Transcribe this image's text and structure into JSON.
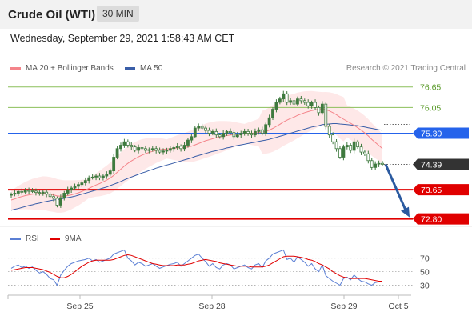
{
  "header": {
    "title": "Crude Oil (WTI)",
    "timeframe": "30 MIN"
  },
  "datetime": "Wednesday, September 29, 2021 1:58:43 AM CET",
  "credit": "Research © 2021 Trading Central",
  "legend": {
    "ma20_label": "MA 20 + Bollinger Bands",
    "ma50_label": "MA 50",
    "rsi_label": "RSI",
    "rsi_ma_label": "9MA"
  },
  "colors": {
    "ma20": "#f4848a",
    "ma50": "#3a5ea8",
    "bollinger": "#fde0e0",
    "candle": "#3f7a3f",
    "level_green": "#8cbf5a",
    "level_blue": "#2563eb",
    "level_red": "#e00000",
    "last_price": "#333333",
    "rsi": "#5b7fd4",
    "rsi_ma": "#e00000",
    "arrow": "#2b5aa0"
  },
  "chart_data": [
    {
      "type": "candlestick",
      "x_tick_labels": [
        "Sep 25",
        "Sep 28",
        "Sep 29",
        "Oct 5"
      ],
      "y_range": [
        72.65,
        76.9
      ],
      "last_price": 74.39,
      "levels": [
        {
          "value": 76.65,
          "label": "76.65",
          "style": "resistance"
        },
        {
          "value": 76.05,
          "label": "76.05",
          "style": "resistance"
        },
        {
          "value": 75.3,
          "label": "75.30",
          "style": "pivot"
        },
        {
          "value": 73.65,
          "label": "73.65",
          "style": "support"
        },
        {
          "value": 72.8,
          "label": "72.80",
          "style": "support"
        }
      ],
      "close": [
        73.52,
        73.55,
        73.6,
        73.58,
        73.63,
        73.62,
        73.61,
        73.57,
        73.55,
        73.58,
        73.52,
        73.45,
        73.4,
        73.2,
        73.42,
        73.55,
        73.65,
        73.7,
        73.75,
        73.8,
        73.85,
        73.92,
        74.0,
        74.02,
        74.05,
        74.0,
        74.05,
        74.1,
        74.2,
        74.6,
        74.85,
        74.95,
        75.05,
        74.95,
        74.9,
        74.8,
        74.88,
        74.85,
        74.8,
        74.82,
        74.85,
        74.8,
        74.75,
        74.78,
        74.8,
        74.85,
        74.88,
        74.92,
        74.85,
        74.95,
        75.1,
        75.2,
        75.45,
        75.5,
        75.45,
        75.38,
        75.3,
        75.35,
        75.25,
        75.2,
        75.3,
        75.35,
        75.32,
        75.2,
        75.25,
        75.3,
        75.35,
        75.3,
        75.25,
        75.35,
        75.4,
        75.3,
        75.55,
        75.75,
        76.0,
        76.2,
        76.3,
        76.45,
        76.2,
        76.25,
        76.15,
        76.3,
        76.25,
        76.2,
        76.1,
        76.2,
        76.05,
        75.9,
        76.15,
        75.5,
        75.25,
        75.05,
        74.85,
        74.6,
        74.9,
        74.95,
        74.8,
        75.05,
        74.9,
        74.75,
        74.7,
        74.5,
        74.3,
        74.4,
        74.42,
        74.39
      ],
      "ma20": [
        73.35,
        73.38,
        73.42,
        73.45,
        73.48,
        73.5,
        73.52,
        73.53,
        73.54,
        73.55,
        73.54,
        73.52,
        73.5,
        73.47,
        73.46,
        73.46,
        73.48,
        73.5,
        73.53,
        73.56,
        73.6,
        73.64,
        73.69,
        73.74,
        73.79,
        73.83,
        73.88,
        73.93,
        73.99,
        74.07,
        74.16,
        74.25,
        74.34,
        74.42,
        74.49,
        74.55,
        74.61,
        74.66,
        74.7,
        74.74,
        74.77,
        74.8,
        74.82,
        74.83,
        74.84,
        74.85,
        74.86,
        74.87,
        74.87,
        74.88,
        74.9,
        74.92,
        74.96,
        75.0,
        75.04,
        75.08,
        75.11,
        75.14,
        75.17,
        75.19,
        75.21,
        75.23,
        75.25,
        75.26,
        75.27,
        75.28,
        75.29,
        75.3,
        75.3,
        75.31,
        75.32,
        75.33,
        75.35,
        75.39,
        75.44,
        75.5,
        75.56,
        75.63,
        75.68,
        75.73,
        75.77,
        75.82,
        75.86,
        75.9,
        75.93,
        75.96,
        75.98,
        76.0,
        76.02,
        75.99,
        75.95,
        75.9,
        75.84,
        75.77,
        75.71,
        75.65,
        75.59,
        75.53,
        75.46,
        75.39,
        75.31,
        75.22,
        75.12,
        75.03,
        74.94,
        74.85
      ],
      "ma50": [
        73.05,
        73.08,
        73.1,
        73.13,
        73.16,
        73.19,
        73.21,
        73.24,
        73.26,
        73.29,
        73.31,
        73.33,
        73.35,
        73.36,
        73.38,
        73.4,
        73.42,
        73.44,
        73.46,
        73.49,
        73.52,
        73.55,
        73.58,
        73.61,
        73.64,
        73.67,
        73.7,
        73.73,
        73.77,
        73.81,
        73.85,
        73.89,
        73.94,
        73.98,
        74.02,
        74.06,
        74.1,
        74.14,
        74.17,
        74.21,
        74.24,
        74.28,
        74.31,
        74.34,
        74.37,
        74.4,
        74.43,
        74.46,
        74.49,
        74.52,
        74.55,
        74.58,
        74.62,
        74.65,
        74.68,
        74.71,
        74.74,
        74.77,
        74.79,
        74.82,
        74.84,
        74.87,
        74.89,
        74.92,
        74.94,
        74.96,
        74.98,
        75.0,
        75.02,
        75.04,
        75.06,
        75.08,
        75.1,
        75.12,
        75.15,
        75.18,
        75.21,
        75.24,
        75.27,
        75.3,
        75.33,
        75.36,
        75.39,
        75.42,
        75.45,
        75.48,
        75.5,
        75.52,
        75.55,
        75.56,
        75.57,
        75.58,
        75.58,
        75.57,
        75.56,
        75.55,
        75.54,
        75.53,
        75.52,
        75.5,
        75.48,
        75.46,
        75.44,
        75.42,
        75.4,
        75.39
      ]
    },
    {
      "type": "line",
      "y_range": [
        20,
        85
      ],
      "y_tick_labels": [
        "70",
        "50",
        "30"
      ],
      "y_ticks": [
        70,
        50,
        30
      ],
      "rsi": [
        55,
        58,
        60,
        56,
        58,
        55,
        57,
        52,
        48,
        50,
        46,
        40,
        38,
        30,
        45,
        52,
        58,
        62,
        64,
        66,
        67,
        68,
        70,
        66,
        68,
        64,
        66,
        68,
        70,
        76,
        78,
        80,
        82,
        70,
        66,
        60,
        64,
        62,
        58,
        60,
        62,
        58,
        55,
        57,
        59,
        61,
        62,
        64,
        58,
        62,
        66,
        70,
        74,
        76,
        70,
        65,
        58,
        62,
        56,
        54,
        60,
        62,
        60,
        54,
        56,
        58,
        60,
        56,
        54,
        60,
        62,
        56,
        66,
        70,
        76,
        78,
        80,
        82,
        68,
        70,
        64,
        72,
        68,
        64,
        58,
        62,
        54,
        50,
        60,
        44,
        40,
        36,
        33,
        30,
        40,
        42,
        38,
        45,
        40,
        36,
        35,
        32,
        30,
        34,
        35,
        36
      ],
      "rsi_ma": [
        52,
        53,
        54,
        55,
        56,
        56,
        56,
        55,
        54,
        53,
        51,
        49,
        46,
        43,
        41,
        41,
        43,
        46,
        50,
        54,
        58,
        61,
        64,
        66,
        67,
        67,
        67,
        67,
        67,
        68,
        70,
        72,
        74,
        75,
        74,
        72,
        70,
        68,
        66,
        64,
        62,
        61,
        60,
        59,
        59,
        59,
        59,
        60,
        60,
        60,
        61,
        62,
        64,
        66,
        67,
        68,
        67,
        66,
        65,
        63,
        62,
        61,
        60,
        59,
        58,
        58,
        58,
        58,
        57,
        57,
        57,
        57,
        58,
        60,
        63,
        66,
        69,
        72,
        73,
        73,
        73,
        72,
        71,
        70,
        68,
        67,
        65,
        62,
        60,
        57,
        54,
        50,
        47,
        44,
        42,
        41,
        40,
        40,
        40,
        40,
        40,
        39,
        38,
        37,
        36,
        36
      ]
    }
  ]
}
